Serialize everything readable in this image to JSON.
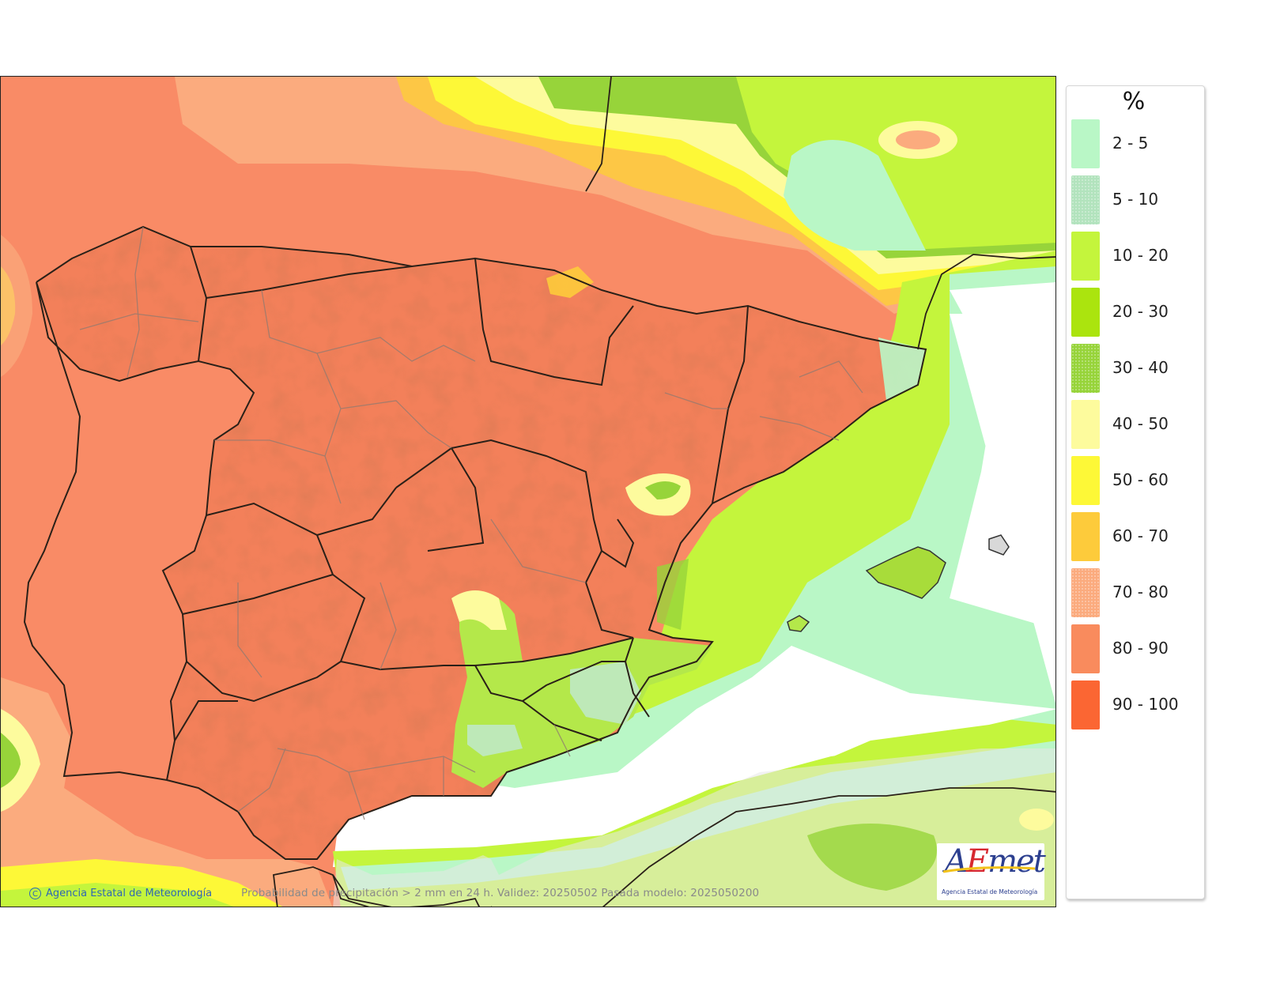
{
  "map": {
    "title": "Probabilidad de precipitación > 2 mm en 24 h",
    "caption": "Probabilidad de precipitación > 2 mm en 24 h. Validez: 20250502 Pasada modelo: 2025050200",
    "validity": "20250502",
    "model_run": "2025050200",
    "credit": "Agencia Estatal de Meteorología",
    "copyright_symbol": "C",
    "logo": {
      "wordmark_a": "A",
      "wordmark_e": "E",
      "wordmark_rest": "met",
      "tagline": "Agencia Estatal de Meteorología"
    },
    "regions_shown": [
      "Iberian Peninsula",
      "Balearic Islands",
      "Northern Morocco / Algeria coast",
      "Southern France coast"
    ]
  },
  "legend": {
    "unit": "%",
    "items": [
      {
        "label": "2 - 5",
        "color": "#b9f7c6"
      },
      {
        "label": "5 - 10",
        "color": "#b2e3bd",
        "stippled": true
      },
      {
        "label": "10 - 20",
        "color": "#c4f53c"
      },
      {
        "label": "20 - 30",
        "color": "#abe40e"
      },
      {
        "label": "30 - 40",
        "color": "#97d43a",
        "stippled": true
      },
      {
        "label": "40 - 50",
        "color": "#fdfb9d"
      },
      {
        "label": "50 - 60",
        "color": "#fdf837"
      },
      {
        "label": "60 - 70",
        "color": "#fdcb3b"
      },
      {
        "label": "70 - 80",
        "color": "#fbab7e",
        "stippled": true
      },
      {
        "label": "80 - 90",
        "color": "#f98b5d"
      },
      {
        "label": "90 - 100",
        "color": "#fb6633"
      }
    ]
  },
  "chart_data": {
    "type": "heatmap",
    "title": "Probabilidad de precipitación > 2 mm en 24 h",
    "subtitle": "Validez: 20250502 Pasada modelo: 2025050200",
    "legend_title": "%",
    "bins": [
      "2 - 5",
      "5 - 10",
      "10 - 20",
      "20 - 30",
      "30 - 40",
      "40 - 50",
      "50 - 60",
      "60 - 70",
      "70 - 80",
      "80 - 90",
      "90 - 100"
    ],
    "legend_position": "right",
    "regional_reading": [
      {
        "region": "Portugal and western/central Iberia",
        "probability_bin": "80 - 90"
      },
      {
        "region": "Galicia / Cantabrian coast",
        "probability_bin": "80 - 90"
      },
      {
        "region": "Bay of Biscay",
        "probability_bin": "40 - 80"
      },
      {
        "region": "Southern France / Gulf of Lion",
        "probability_bin": "5 - 30"
      },
      {
        "region": "Catalonia coast",
        "probability_bin": "5 - 40"
      },
      {
        "region": "Murcia / Almería / Granada east",
        "probability_bin": "10 - 40"
      },
      {
        "region": "Balearic Islands (Mallorca)",
        "probability_bin": "20 - 40"
      },
      {
        "region": "Menorca",
        "probability_bin": "< 2"
      },
      {
        "region": "Alborán Sea / western Mediterranean",
        "probability_bin": "< 2"
      },
      {
        "region": "North Africa coast",
        "probability_bin": "10 - 40"
      },
      {
        "region": "Gulf of Cádiz / Atlantic southwest",
        "probability_bin": "70 - 90"
      }
    ]
  }
}
